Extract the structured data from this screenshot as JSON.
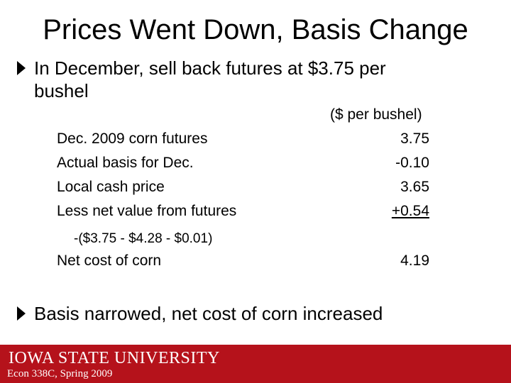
{
  "title": "Prices Went Down, Basis Change",
  "bullets": [
    "In December, sell back futures at $3.75 per bushel",
    "Basis narrowed, net cost of corn increased"
  ],
  "table": {
    "unit_header": "($ per bushel)",
    "rows": [
      {
        "label": "Dec. 2009 corn futures",
        "value": "3.75"
      },
      {
        "label": "Actual basis for Dec.",
        "value": "-0.10"
      },
      {
        "label": "Local cash price",
        "value": "3.65"
      },
      {
        "label": "Less net value from futures",
        "value": "+0.54"
      }
    ],
    "calc_note": "-($3.75 - $4.28 - $0.01)",
    "net": {
      "label": "Net cost of corn",
      "value": "4.19"
    }
  },
  "footer": {
    "university": "IOWA STATE UNIVERSITY",
    "course": "Econ 338C, Spring 2009",
    "color": "#b5121b"
  }
}
